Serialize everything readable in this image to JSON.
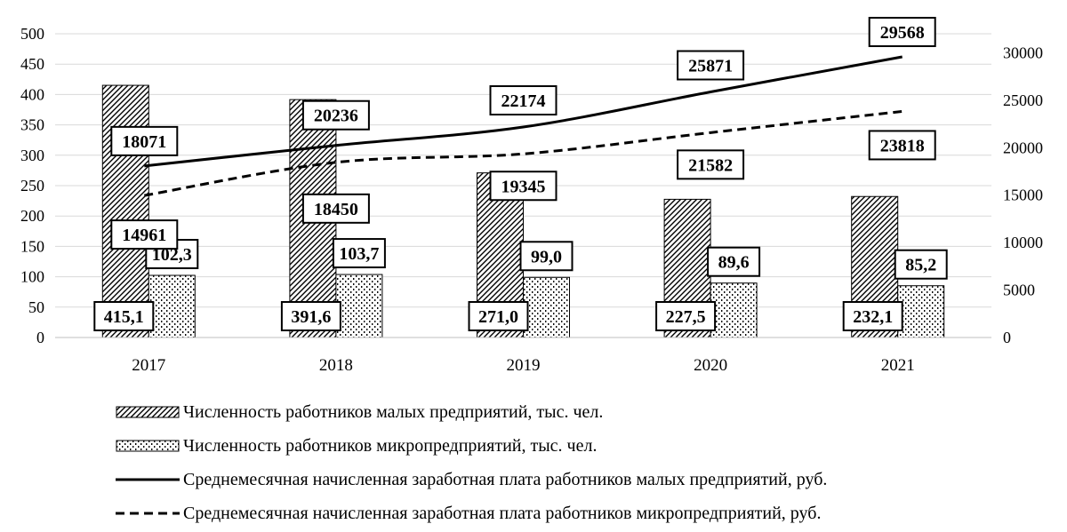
{
  "chart_data": {
    "type": "bar+line",
    "categories": [
      "2017",
      "2018",
      "2019",
      "2020",
      "2021"
    ],
    "y_left": {
      "range": [
        0,
        500
      ],
      "ticks": [
        0,
        50,
        100,
        150,
        200,
        250,
        300,
        350,
        400,
        450,
        500
      ]
    },
    "y_right": {
      "range": [
        0,
        32000
      ],
      "ticks": [
        0,
        5000,
        10000,
        15000,
        20000,
        25000,
        30000
      ]
    },
    "grid": true,
    "legend_position": "bottom",
    "bar_series": [
      {
        "name": "Численность работников малых предприятий, тыс. чел.",
        "values": [
          415.1,
          391.6,
          271.0,
          227.5,
          232.1
        ],
        "labels": [
          "415,1",
          "391,6",
          "271,0",
          "227,5",
          "232,1"
        ],
        "pattern": "hatch"
      },
      {
        "name": "Численность работников микропредприятий, тыс. чел.",
        "values": [
          102.3,
          103.7,
          99.0,
          89.6,
          85.2
        ],
        "labels": [
          "102,3",
          "103,7",
          "99,0",
          "89,6",
          "85,2"
        ],
        "pattern": "dots"
      }
    ],
    "line_series": [
      {
        "name": "Среднемесячная начисленная заработная плата работников малых предприятий, руб.",
        "values": [
          18071,
          20236,
          22174,
          25871,
          29568
        ],
        "labels": [
          "18071",
          "20236",
          "22174",
          "25871",
          "29568"
        ],
        "style": "solid"
      },
      {
        "name": "Среднемесячная начисленная заработная плата работников микропредприятий, руб.",
        "values": [
          14961,
          18450,
          19345,
          21582,
          23818
        ],
        "labels": [
          "14961",
          "18450",
          "19345",
          "21582",
          "23818"
        ],
        "style": "dashed"
      }
    ]
  }
}
